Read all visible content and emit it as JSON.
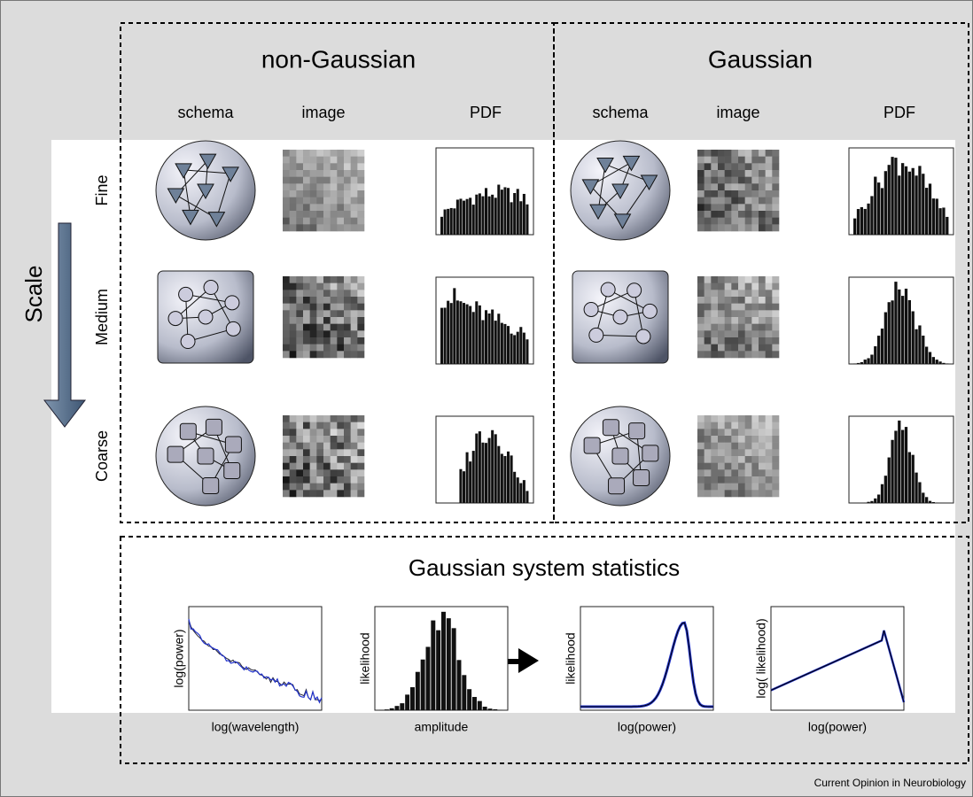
{
  "panels": {
    "non_gaussian": {
      "title": "non-Gaussian",
      "columns": [
        "schema",
        "image",
        "PDF"
      ]
    },
    "gaussian": {
      "title": "Gaussian",
      "columns": [
        "schema",
        "image",
        "PDF"
      ]
    }
  },
  "scale": {
    "label": "Scale",
    "rows": [
      "Fine",
      "Medium",
      "Coarse"
    ]
  },
  "statistics": {
    "title": "Gaussian system statistics",
    "plots": [
      {
        "y_label": "log(power)",
        "x_label": "log(wavelength)"
      },
      {
        "y_label": "likelihood",
        "x_label": "amplitude"
      },
      {
        "y_label": "likelihood",
        "x_label": "log(power)"
      },
      {
        "y_label": "log( likelihood)",
        "x_label": "log(power)"
      }
    ]
  },
  "credit": "Current Opinion in Neurobiology"
}
